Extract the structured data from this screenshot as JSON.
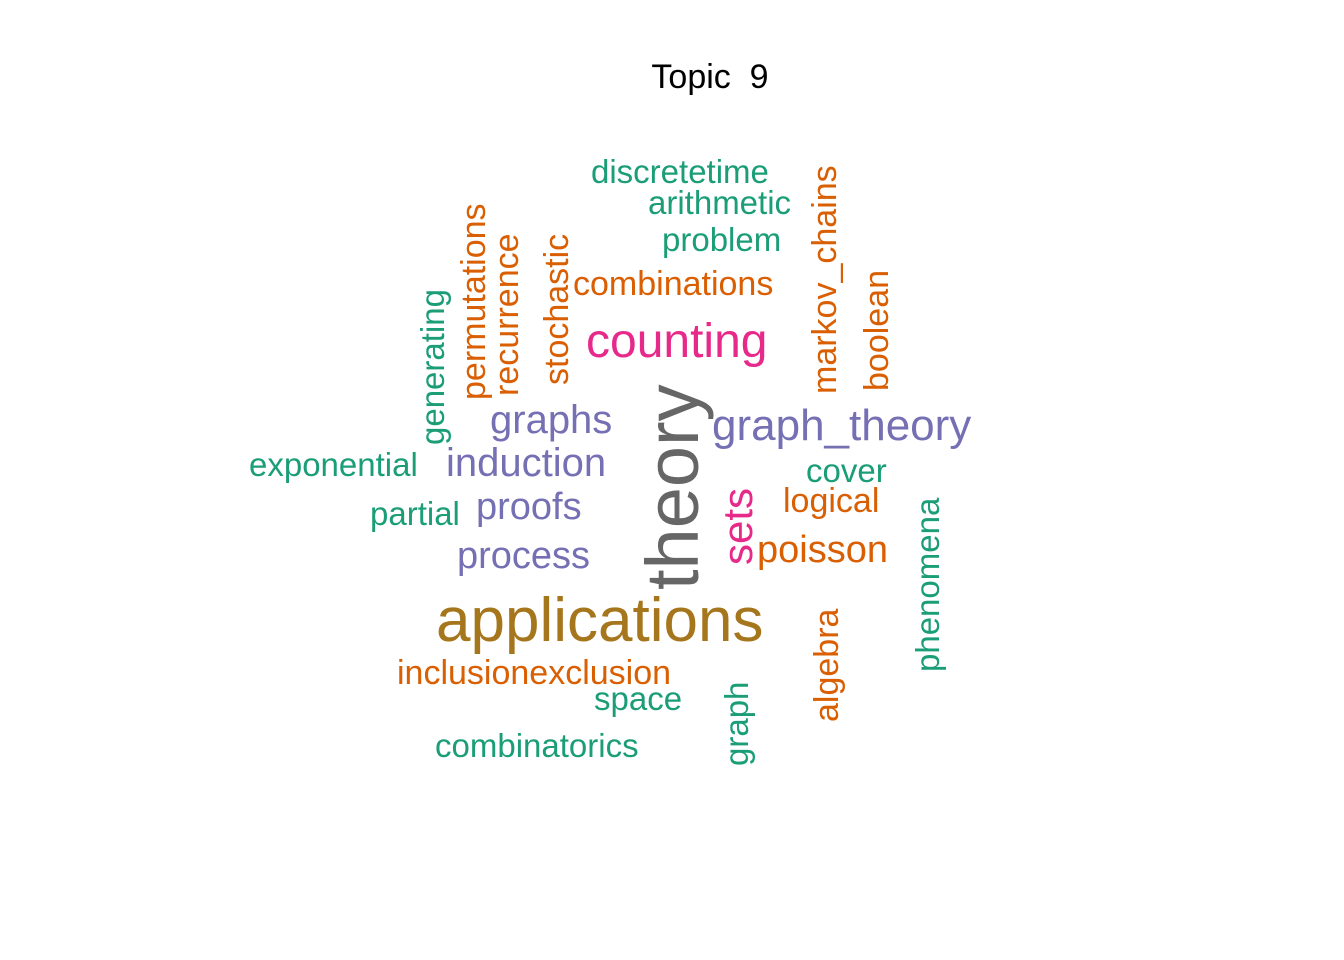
{
  "title": "Topic  9",
  "palette": {
    "dark_gray": "#666666",
    "gold": "#a6761d",
    "magenta": "#e7298a",
    "lavender": "#7570b3",
    "orange": "#d95f02",
    "teal": "#1b9e77"
  },
  "words": [
    {
      "text": "theory",
      "color": "#666666",
      "weight": 10,
      "rotated": true
    },
    {
      "text": "applications",
      "color": "#a6761d",
      "weight": 9,
      "rotated": false
    },
    {
      "text": "counting",
      "color": "#e7298a",
      "weight": 7,
      "rotated": false
    },
    {
      "text": "sets",
      "color": "#e7298a",
      "weight": 7,
      "rotated": true
    },
    {
      "text": "graph_theory",
      "color": "#7570b3",
      "weight": 6,
      "rotated": false
    },
    {
      "text": "graphs",
      "color": "#7570b3",
      "weight": 6,
      "rotated": false
    },
    {
      "text": "induction",
      "color": "#7570b3",
      "weight": 6,
      "rotated": false
    },
    {
      "text": "proofs",
      "color": "#7570b3",
      "weight": 6,
      "rotated": false
    },
    {
      "text": "process",
      "color": "#7570b3",
      "weight": 6,
      "rotated": false
    },
    {
      "text": "poisson",
      "color": "#d95f02",
      "weight": 5,
      "rotated": false
    },
    {
      "text": "markov_chains",
      "color": "#d95f02",
      "weight": 5,
      "rotated": true
    },
    {
      "text": "combinations",
      "color": "#d95f02",
      "weight": 5,
      "rotated": false
    },
    {
      "text": "stochastic",
      "color": "#d95f02",
      "weight": 5,
      "rotated": true
    },
    {
      "text": "recurrence",
      "color": "#d95f02",
      "weight": 5,
      "rotated": true
    },
    {
      "text": "permutations",
      "color": "#d95f02",
      "weight": 5,
      "rotated": true
    },
    {
      "text": "boolean",
      "color": "#d95f02",
      "weight": 5,
      "rotated": true
    },
    {
      "text": "logical",
      "color": "#d95f02",
      "weight": 5,
      "rotated": false
    },
    {
      "text": "algebra",
      "color": "#d95f02",
      "weight": 5,
      "rotated": true
    },
    {
      "text": "inclusionexclusion",
      "color": "#d95f02",
      "weight": 5,
      "rotated": false
    },
    {
      "text": "discretetime",
      "color": "#1b9e77",
      "weight": 4,
      "rotated": false
    },
    {
      "text": "arithmetic",
      "color": "#1b9e77",
      "weight": 4,
      "rotated": false
    },
    {
      "text": "problem",
      "color": "#1b9e77",
      "weight": 4,
      "rotated": false
    },
    {
      "text": "generating",
      "color": "#1b9e77",
      "weight": 4,
      "rotated": true
    },
    {
      "text": "exponential",
      "color": "#1b9e77",
      "weight": 4,
      "rotated": false
    },
    {
      "text": "partial",
      "color": "#1b9e77",
      "weight": 4,
      "rotated": false
    },
    {
      "text": "cover",
      "color": "#1b9e77",
      "weight": 4,
      "rotated": false
    },
    {
      "text": "phenomena",
      "color": "#1b9e77",
      "weight": 4,
      "rotated": true
    },
    {
      "text": "space",
      "color": "#1b9e77",
      "weight": 4,
      "rotated": false
    },
    {
      "text": "graph",
      "color": "#1b9e77",
      "weight": 4,
      "rotated": true
    },
    {
      "text": "combinatorics",
      "color": "#1b9e77",
      "weight": 4,
      "rotated": false
    }
  ]
}
